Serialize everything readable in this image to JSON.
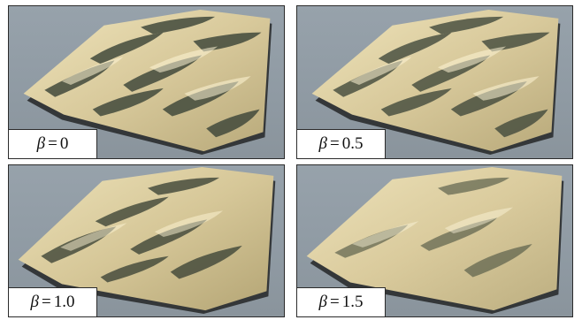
{
  "panels": [
    {
      "symbol": "β",
      "eq": "=",
      "value": "0"
    },
    {
      "symbol": "β",
      "eq": "=",
      "value": "0.5"
    },
    {
      "symbol": "β",
      "eq": "=",
      "value": "1.0"
    },
    {
      "symbol": "β",
      "eq": "=",
      "value": "1.5"
    }
  ],
  "colors": {
    "background": "#929da6",
    "terrain_light": "#e8dcb0",
    "terrain_mid": "#c9b98a",
    "terrain_dark": "#3f4638",
    "shadow": "#2a2c2e"
  }
}
